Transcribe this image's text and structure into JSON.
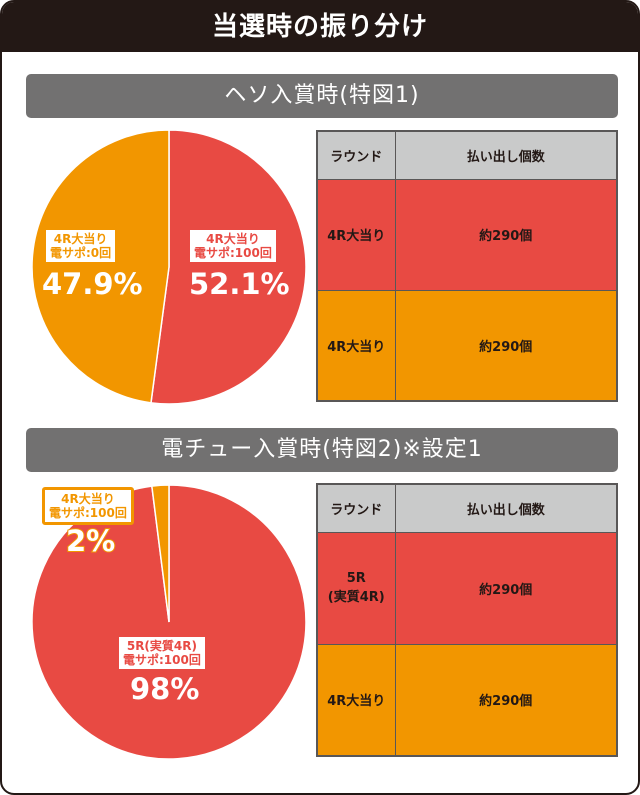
{
  "title": "当選時の振り分け",
  "colors": {
    "red": "#e84a43",
    "orange": "#f29600",
    "header": "#231815",
    "bar": "#727171"
  },
  "sections": [
    {
      "heading": "ヘソ入賞時(特図1)",
      "labels": [
        {
          "line1": "4R大当り",
          "line2": "電サポ:0回",
          "pct": "47.9%"
        },
        {
          "line1": "4R大当り",
          "line2": "電サポ:100回",
          "pct": "52.1%"
        }
      ],
      "table": {
        "headers": [
          "ラウンド",
          "払い出し個数"
        ],
        "rows": [
          [
            "4R大当り",
            "約290個"
          ],
          [
            "4R大当り",
            "約290個"
          ]
        ]
      }
    },
    {
      "heading": "電チュー入賞時(特図2)※設定1",
      "labels": [
        {
          "line1": "4R大当り",
          "line2": "電サポ:100回",
          "pct": "2%"
        },
        {
          "line1": "5R(実質4R)",
          "line2": "電サポ:100回",
          "pct": "98%"
        }
      ],
      "table": {
        "headers": [
          "ラウンド",
          "払い出し個数"
        ],
        "rows": [
          [
            "5R\n(実質4R)",
            "約290個"
          ],
          [
            "4R大当り",
            "約290個"
          ]
        ]
      }
    }
  ],
  "chart_data": [
    {
      "type": "pie",
      "title": "ヘソ入賞時(特図1)",
      "categories": [
        "4R大当り 電サポ:100回",
        "4R大当り 電サポ:0回"
      ],
      "values": [
        52.1,
        47.9
      ],
      "colors": [
        "#e84a43",
        "#f29600"
      ]
    },
    {
      "type": "pie",
      "title": "電チュー入賞時(特図2)※設定1",
      "categories": [
        "5R(実質4R) 電サポ:100回",
        "4R大当り 電サポ:100回"
      ],
      "values": [
        98,
        2
      ],
      "colors": [
        "#e84a43",
        "#f29600"
      ]
    }
  ]
}
